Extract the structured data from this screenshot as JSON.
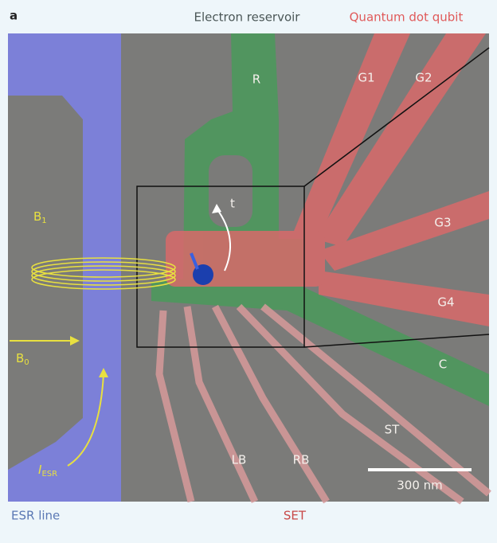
{
  "panel_label": "a",
  "header": {
    "left": "Electron reservoir",
    "right": "Quantum dot qubit"
  },
  "labels": {
    "reservoir": "R",
    "gate1": "G1",
    "gate2": "G2",
    "gate3": "G3",
    "gate4": "G4",
    "confinement": "C",
    "set_top": "ST",
    "left_barrier": "LB",
    "right_barrier": "RB",
    "tunnel": "t"
  },
  "fields": {
    "b1": {
      "symbol": "B",
      "subscript": "1"
    },
    "b0": {
      "symbol": "B",
      "subscript": "0"
    },
    "current": {
      "symbol": "I",
      "subscript": "ESR"
    }
  },
  "scale_bar": "300 nm",
  "footer": {
    "left": "ESR line",
    "right": "SET"
  }
}
